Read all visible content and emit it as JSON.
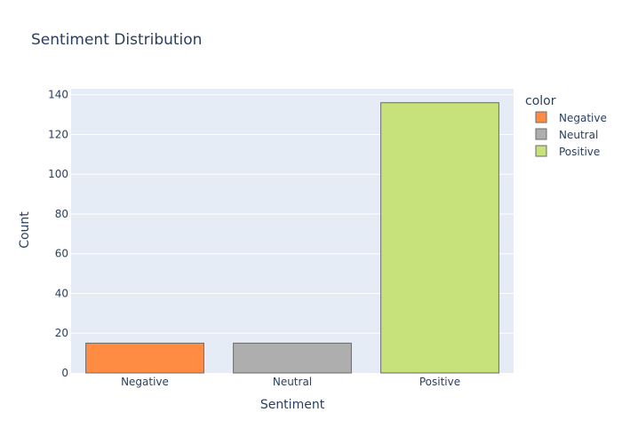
{
  "chart_data": {
    "type": "bar",
    "title": "Sentiment Distribution",
    "xlabel": "Sentiment",
    "ylabel": "Count",
    "categories": [
      "Negative",
      "Neutral",
      "Positive"
    ],
    "values": [
      15,
      15,
      136
    ],
    "colors": [
      "#ff8c42",
      "#aeaeae",
      "#c7e27a"
    ],
    "ylim": [
      0,
      143
    ],
    "yticks": [
      0,
      20,
      40,
      60,
      80,
      100,
      120,
      140
    ],
    "grid": true,
    "legend": {
      "title": "color",
      "placement": "right",
      "items": [
        {
          "label": "Negative",
          "color": "#ff8c42"
        },
        {
          "label": "Neutral",
          "color": "#aeaeae"
        },
        {
          "label": "Positive",
          "color": "#c7e27a"
        }
      ]
    },
    "plot_bgcolor": "#e5ecf6",
    "bar_outline_color": "#6b6b6b"
  }
}
